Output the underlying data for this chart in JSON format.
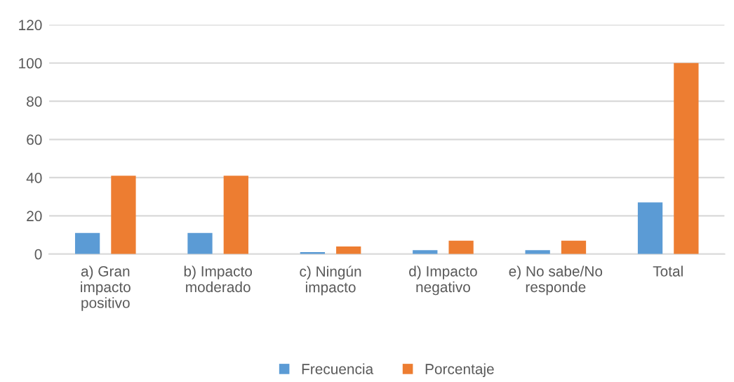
{
  "chart_data": {
    "type": "bar",
    "categories": [
      "a) Gran\nimpacto\npositivo",
      "b) Impacto\nmoderado",
      "c) Ningún\nimpacto",
      "d) Impacto\nnegativo",
      "e) No sabe/No\nresponde",
      "Total"
    ],
    "series": [
      {
        "name": "Frecuencia",
        "color": "#5b9bd5",
        "values": [
          11,
          11,
          1,
          2,
          2,
          27
        ]
      },
      {
        "name": "Porcentaje",
        "color": "#ed7d31",
        "values": [
          41,
          41,
          4,
          7,
          7,
          100
        ]
      }
    ],
    "ylim": [
      0,
      120
    ],
    "yticks": [
      0,
      20,
      40,
      60,
      80,
      100,
      120
    ],
    "grid": "y",
    "legend": "bottom"
  }
}
